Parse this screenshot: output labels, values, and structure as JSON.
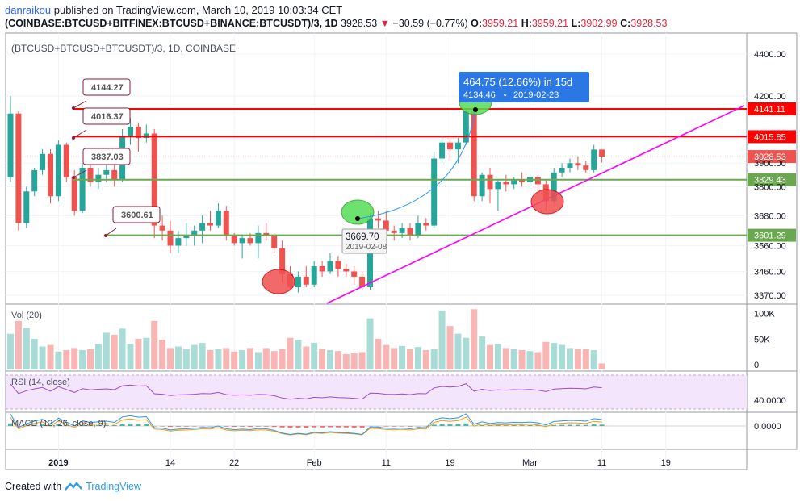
{
  "header": {
    "user": "danraikou",
    "published": "published on TradingView.com, March 10, 2019 10:03:34 CET",
    "symbol": "(COINBASE:BTCUSD+BITFINEX:BTCUSD+BINANCE:BTCUSDT)/3, 1D",
    "last": "3928.53",
    "change": "−30.59 (−0.77%)",
    "o_label": "O:",
    "o": "3959.21",
    "h_label": "H:",
    "h": "3959.21",
    "l_label": "L:",
    "l": "3902.99",
    "c_label": "C:",
    "c": "3928.53"
  },
  "pane_title": "(BTCUSD+BTCUSD+BTCUSDT)/3, 1D, COINBASE",
  "footer": {
    "created": "Created with",
    "brand": "TradingView"
  },
  "colors": {
    "up": "#26a69a",
    "down": "#ef5350",
    "resistance": "#ff0000",
    "support": "#6aa84f",
    "trend": "#ff00ff",
    "measure": "#2196f3"
  },
  "chart_data": {
    "type": "candlestick",
    "price_axis": {
      "ticks": [
        3370,
        3460,
        3560,
        3680,
        3800,
        3900,
        4200,
        4400
      ],
      "tick_labels": [
        "3370.00",
        "3460.00",
        "3560.00",
        "3680.00",
        "3800.00",
        "3900.00",
        "4200.00",
        "4400.00"
      ],
      "scale": "log"
    },
    "time_axis": {
      "labels": [
        "2019",
        "14",
        "22",
        "Feb",
        "11",
        "19",
        "Mar",
        "11",
        "19"
      ]
    },
    "candles": [
      {
        "o": 3840,
        "h": 4200,
        "l": 3820,
        "c": 4120
      },
      {
        "o": 4120,
        "h": 4130,
        "l": 3620,
        "c": 3650
      },
      {
        "o": 3650,
        "h": 3800,
        "l": 3630,
        "c": 3780
      },
      {
        "o": 3780,
        "h": 3880,
        "l": 3760,
        "c": 3870
      },
      {
        "o": 3870,
        "h": 3960,
        "l": 3850,
        "c": 3940
      },
      {
        "o": 3940,
        "h": 3960,
        "l": 3730,
        "c": 3760
      },
      {
        "o": 3760,
        "h": 4000,
        "l": 3740,
        "c": 3980
      },
      {
        "o": 3980,
        "h": 3990,
        "l": 3820,
        "c": 3840
      },
      {
        "o": 3840,
        "h": 3870,
        "l": 3680,
        "c": 3700
      },
      {
        "o": 3700,
        "h": 3900,
        "l": 3690,
        "c": 3880
      },
      {
        "o": 3880,
        "h": 3900,
        "l": 3800,
        "c": 3820
      },
      {
        "o": 3820,
        "h": 3880,
        "l": 3790,
        "c": 3850
      },
      {
        "o": 3850,
        "h": 3920,
        "l": 3820,
        "c": 3870
      },
      {
        "o": 3870,
        "h": 3900,
        "l": 3800,
        "c": 3830
      },
      {
        "o": 3830,
        "h": 4050,
        "l": 3820,
        "c": 4020
      },
      {
        "o": 4020,
        "h": 4100,
        "l": 3980,
        "c": 4060
      },
      {
        "o": 4060,
        "h": 4080,
        "l": 3950,
        "c": 4010
      },
      {
        "o": 4010,
        "h": 4070,
        "l": 3990,
        "c": 4030
      },
      {
        "o": 4030,
        "h": 4050,
        "l": 3590,
        "c": 3640
      },
      {
        "o": 3640,
        "h": 3680,
        "l": 3580,
        "c": 3620
      },
      {
        "o": 3620,
        "h": 3660,
        "l": 3530,
        "c": 3560
      },
      {
        "o": 3560,
        "h": 3620,
        "l": 3530,
        "c": 3590
      },
      {
        "o": 3590,
        "h": 3650,
        "l": 3560,
        "c": 3600
      },
      {
        "o": 3600,
        "h": 3640,
        "l": 3560,
        "c": 3620
      },
      {
        "o": 3620,
        "h": 3680,
        "l": 3570,
        "c": 3650
      },
      {
        "o": 3650,
        "h": 3700,
        "l": 3620,
        "c": 3640
      },
      {
        "o": 3640,
        "h": 3730,
        "l": 3630,
        "c": 3700
      },
      {
        "o": 3700,
        "h": 3720,
        "l": 3580,
        "c": 3600
      },
      {
        "o": 3600,
        "h": 3610,
        "l": 3560,
        "c": 3570
      },
      {
        "o": 3570,
        "h": 3600,
        "l": 3510,
        "c": 3590
      },
      {
        "o": 3590,
        "h": 3610,
        "l": 3560,
        "c": 3570
      },
      {
        "o": 3570,
        "h": 3640,
        "l": 3510,
        "c": 3610
      },
      {
        "o": 3610,
        "h": 3650,
        "l": 3580,
        "c": 3600
      },
      {
        "o": 3600,
        "h": 3610,
        "l": 3530,
        "c": 3550
      },
      {
        "o": 3550,
        "h": 3580,
        "l": 3420,
        "c": 3450
      },
      {
        "o": 3450,
        "h": 3480,
        "l": 3390,
        "c": 3400
      },
      {
        "o": 3400,
        "h": 3460,
        "l": 3380,
        "c": 3440
      },
      {
        "o": 3440,
        "h": 3480,
        "l": 3400,
        "c": 3410
      },
      {
        "o": 3410,
        "h": 3500,
        "l": 3400,
        "c": 3480
      },
      {
        "o": 3480,
        "h": 3500,
        "l": 3440,
        "c": 3460
      },
      {
        "o": 3460,
        "h": 3530,
        "l": 3450,
        "c": 3500
      },
      {
        "o": 3500,
        "h": 3520,
        "l": 3440,
        "c": 3470
      },
      {
        "o": 3470,
        "h": 3490,
        "l": 3440,
        "c": 3460
      },
      {
        "o": 3460,
        "h": 3480,
        "l": 3410,
        "c": 3440
      },
      {
        "o": 3440,
        "h": 3460,
        "l": 3390,
        "c": 3400
      },
      {
        "o": 3400,
        "h": 3690,
        "l": 3390,
        "c": 3669
      },
      {
        "o": 3669,
        "h": 3700,
        "l": 3630,
        "c": 3660
      },
      {
        "o": 3660,
        "h": 3700,
        "l": 3600,
        "c": 3620
      },
      {
        "o": 3620,
        "h": 3640,
        "l": 3580,
        "c": 3610
      },
      {
        "o": 3610,
        "h": 3650,
        "l": 3590,
        "c": 3630
      },
      {
        "o": 3630,
        "h": 3650,
        "l": 3580,
        "c": 3600
      },
      {
        "o": 3600,
        "h": 3680,
        "l": 3590,
        "c": 3650
      },
      {
        "o": 3650,
        "h": 3670,
        "l": 3620,
        "c": 3640
      },
      {
        "o": 3640,
        "h": 3950,
        "l": 3630,
        "c": 3920
      },
      {
        "o": 3920,
        "h": 4020,
        "l": 3900,
        "c": 3990
      },
      {
        "o": 3990,
        "h": 4010,
        "l": 3910,
        "c": 3960
      },
      {
        "o": 3960,
        "h": 4010,
        "l": 3900,
        "c": 3990
      },
      {
        "o": 3990,
        "h": 4140,
        "l": 3980,
        "c": 4130
      },
      {
        "o": 4130,
        "h": 4150,
        "l": 3740,
        "c": 3760
      },
      {
        "o": 3760,
        "h": 3860,
        "l": 3740,
        "c": 3850
      },
      {
        "o": 3850,
        "h": 3880,
        "l": 3730,
        "c": 3790
      },
      {
        "o": 3790,
        "h": 3830,
        "l": 3700,
        "c": 3820
      },
      {
        "o": 3820,
        "h": 3850,
        "l": 3780,
        "c": 3810
      },
      {
        "o": 3810,
        "h": 3840,
        "l": 3790,
        "c": 3830
      },
      {
        "o": 3830,
        "h": 3860,
        "l": 3800,
        "c": 3820
      },
      {
        "o": 3820,
        "h": 3850,
        "l": 3800,
        "c": 3840
      },
      {
        "o": 3840,
        "h": 3850,
        "l": 3780,
        "c": 3810
      },
      {
        "o": 3810,
        "h": 3830,
        "l": 3700,
        "c": 3740
      },
      {
        "o": 3740,
        "h": 3880,
        "l": 3730,
        "c": 3860
      },
      {
        "o": 3860,
        "h": 3900,
        "l": 3840,
        "c": 3880
      },
      {
        "o": 3880,
        "h": 3920,
        "l": 3860,
        "c": 3900
      },
      {
        "o": 3900,
        "h": 3930,
        "l": 3870,
        "c": 3890
      },
      {
        "o": 3890,
        "h": 3910,
        "l": 3860,
        "c": 3870
      },
      {
        "o": 3870,
        "h": 3980,
        "l": 3860,
        "c": 3959
      },
      {
        "o": 3959.21,
        "h": 3959.21,
        "l": 3902.99,
        "c": 3928.53
      }
    ],
    "volume": {
      "title": "Vol (20)",
      "ticks": [
        0,
        50000,
        100000
      ],
      "tick_labels": [
        "0",
        "50K",
        "100K"
      ],
      "values": [
        70,
        95,
        82,
        60,
        45,
        48,
        35,
        38,
        42,
        38,
        40,
        50,
        72,
        68,
        80,
        50,
        60,
        62,
        95,
        58,
        42,
        45,
        40,
        48,
        52,
        38,
        40,
        42,
        35,
        38,
        42,
        34,
        42,
        36,
        40,
        62,
        58,
        45,
        52,
        40,
        38,
        36,
        30,
        32,
        34,
        100,
        60,
        48,
        42,
        46,
        40,
        44,
        38,
        40,
        115,
        85,
        70,
        62,
        118,
        65,
        48,
        50,
        42,
        40,
        38,
        36,
        34,
        54,
        52,
        48,
        42,
        40,
        40,
        38,
        12
      ]
    },
    "rsi": {
      "title": "RSI (14, close)",
      "tick_label": "40.0000"
    },
    "macd": {
      "title": "MACD (12, 26, close, 9)",
      "tick_label": "0.0000"
    },
    "levels": [
      {
        "price": 4141.11,
        "label": "4141.11",
        "kind": "resistance"
      },
      {
        "price": 4015.85,
        "label": "4015.85",
        "kind": "resistance"
      },
      {
        "price": 3829.43,
        "label": "3829.43",
        "kind": "support"
      },
      {
        "price": 3601.29,
        "label": "3601.29",
        "kind": "support"
      }
    ],
    "last_price_label": "3928.53",
    "callouts": [
      "4144.27",
      "4016.37",
      "3837.03",
      "3600.61"
    ],
    "measure": {
      "title": "464.75 (12.66%) in 15d",
      "sub_price": "4134.46",
      "sub_date": "2019-02-23"
    },
    "low_label": {
      "price": "3669.70",
      "date": "2019-02-08"
    }
  }
}
